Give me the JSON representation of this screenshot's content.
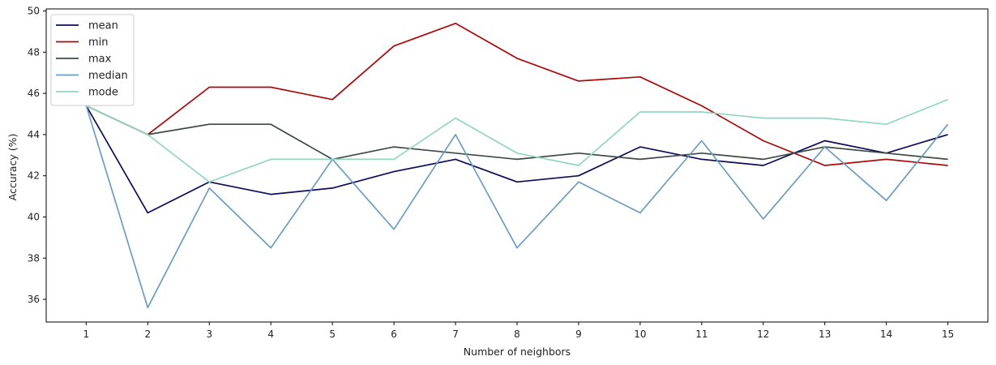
{
  "chart_data": {
    "type": "line",
    "title": "",
    "xlabel": "Number of neighbors",
    "ylabel": "Accuracy (%)",
    "x": [
      1,
      2,
      3,
      4,
      5,
      6,
      7,
      8,
      9,
      10,
      11,
      12,
      13,
      14,
      15
    ],
    "xlim": [
      0.35,
      15.65
    ],
    "ylim": [
      34.9,
      50.1
    ],
    "yticks": [
      36,
      38,
      40,
      42,
      44,
      46,
      48,
      50
    ],
    "grid": false,
    "legend_position": "upper-left",
    "series": [
      {
        "name": "mean",
        "color": "#0c0c58",
        "values": [
          45.4,
          40.2,
          41.7,
          41.1,
          41.4,
          42.2,
          42.8,
          41.7,
          42.0,
          43.4,
          42.8,
          42.5,
          43.7,
          43.1,
          44.0
        ]
      },
      {
        "name": "min",
        "color": "#aa0a0a",
        "values": [
          45.4,
          44.0,
          46.3,
          46.3,
          45.7,
          48.3,
          49.4,
          47.7,
          46.6,
          46.8,
          45.4,
          43.7,
          42.5,
          42.8,
          42.5
        ]
      },
      {
        "name": "max",
        "color": "#3e4a44",
        "values": [
          45.4,
          44.0,
          44.5,
          44.5,
          42.8,
          43.4,
          43.1,
          42.8,
          43.1,
          42.8,
          43.1,
          42.8,
          43.4,
          43.1,
          42.8
        ]
      },
      {
        "name": "median",
        "color": "#6b9dc4",
        "values": [
          45.4,
          35.6,
          41.4,
          38.5,
          42.8,
          39.4,
          44.0,
          38.5,
          41.7,
          40.2,
          43.7,
          39.9,
          43.4,
          40.8,
          44.5
        ]
      },
      {
        "name": "mode",
        "color": "#93d6c0",
        "values": [
          45.4,
          44.0,
          41.7,
          42.8,
          42.8,
          42.8,
          44.8,
          43.1,
          42.5,
          45.1,
          45.1,
          44.8,
          44.8,
          44.5,
          45.7
        ]
      }
    ]
  }
}
